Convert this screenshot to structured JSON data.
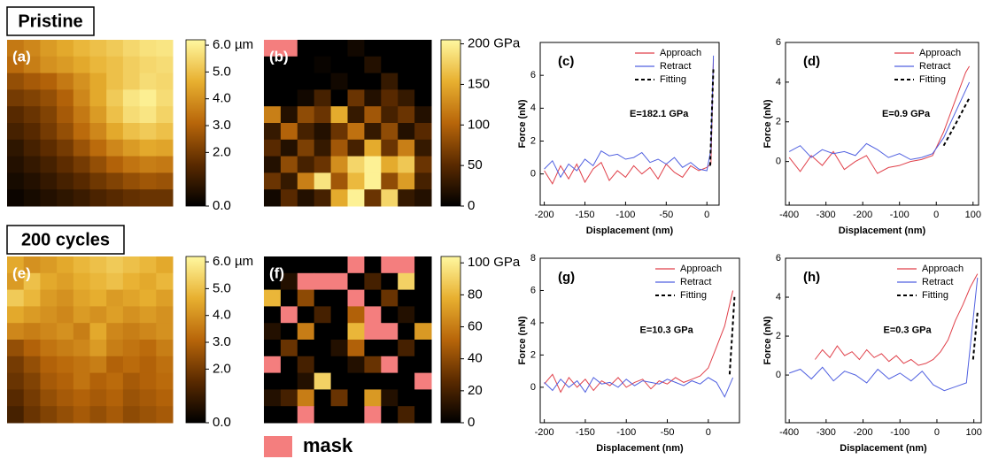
{
  "row_labels": [
    "Pristine",
    "200 cycles"
  ],
  "mask_label": "mask",
  "mask_color": "#f47e7e",
  "chart_data": [
    {
      "type": "heatmap",
      "label": "(a)",
      "colormap": [
        "#000000",
        "#5a2a00",
        "#b8660a",
        "#e8b030",
        "#fff8a0"
      ],
      "zlim": [
        0,
        6.2
      ],
      "zticks": [
        {
          "value": 6,
          "label": "6.0 µm"
        },
        {
          "value": 5,
          "label": "5.0"
        },
        {
          "value": 4,
          "label": "4.0"
        },
        {
          "value": 3,
          "label": "3.0"
        },
        {
          "value": 2,
          "label": "2.0"
        },
        {
          "value": 0,
          "label": "0.0"
        }
      ],
      "values": [
        [
          3.5,
          3.8,
          4.2,
          4.5,
          4.8,
          5.0,
          5.2,
          5.5,
          5.7,
          5.8
        ],
        [
          3.2,
          3.6,
          4.0,
          4.2,
          4.5,
          4.8,
          5.0,
          5.3,
          5.5,
          5.6
        ],
        [
          2.5,
          2.8,
          3.0,
          3.5,
          4.0,
          4.5,
          5.0,
          5.3,
          5.6,
          5.5
        ],
        [
          2.0,
          2.2,
          2.5,
          3.0,
          3.8,
          4.5,
          5.2,
          5.8,
          6.0,
          5.6
        ],
        [
          1.5,
          1.8,
          2.2,
          2.8,
          3.5,
          4.2,
          5.0,
          5.6,
          5.8,
          5.4
        ],
        [
          1.2,
          1.5,
          2.0,
          2.5,
          3.2,
          3.8,
          4.5,
          5.0,
          5.2,
          5.0
        ],
        [
          0.8,
          1.2,
          1.6,
          2.0,
          2.6,
          3.2,
          3.8,
          4.2,
          4.5,
          4.4
        ],
        [
          0.6,
          0.9,
          1.2,
          1.6,
          2.0,
          2.5,
          3.0,
          3.4,
          3.6,
          3.5
        ],
        [
          0.4,
          0.6,
          0.9,
          1.2,
          1.5,
          1.9,
          2.2,
          2.5,
          2.7,
          2.6
        ],
        [
          0.2,
          0.4,
          0.6,
          0.8,
          1.0,
          1.3,
          1.5,
          1.7,
          1.8,
          1.8
        ]
      ]
    },
    {
      "type": "heatmap",
      "label": "(b)",
      "colormap": [
        "#000000",
        "#5a2a00",
        "#b8660a",
        "#e8b030",
        "#fff8a0"
      ],
      "zlim": [
        0,
        205
      ],
      "zticks": [
        {
          "value": 200,
          "label": "200 GPa"
        },
        150,
        100,
        50,
        0
      ],
      "values": [
        [
          null,
          null,
          0,
          0,
          0,
          10,
          0,
          0,
          0,
          0
        ],
        [
          0,
          0,
          0,
          5,
          0,
          0,
          20,
          0,
          0,
          0
        ],
        [
          0,
          0,
          0,
          0,
          10,
          0,
          0,
          30,
          0,
          0
        ],
        [
          0,
          0,
          10,
          40,
          0,
          60,
          20,
          50,
          30,
          0
        ],
        [
          120,
          20,
          80,
          60,
          150,
          30,
          90,
          40,
          60,
          20
        ],
        [
          30,
          100,
          40,
          20,
          60,
          110,
          30,
          80,
          20,
          50
        ],
        [
          50,
          20,
          70,
          30,
          90,
          40,
          150,
          60,
          120,
          30
        ],
        [
          20,
          80,
          40,
          60,
          130,
          180,
          200,
          150,
          170,
          60
        ],
        [
          60,
          30,
          120,
          190,
          90,
          160,
          200,
          80,
          140,
          40
        ],
        [
          10,
          50,
          20,
          40,
          150,
          200,
          60,
          180,
          30,
          20
        ]
      ]
    },
    {
      "type": "line",
      "label": "(c)",
      "xlabel": "Displacement (nm)",
      "ylabel": "Force (nN)",
      "annotation": "E=182.1 GPa",
      "xlim": [
        -205,
        15
      ],
      "ylim": [
        -1.9,
        8
      ],
      "xticks": [
        -200,
        -150,
        -100,
        -50,
        0
      ],
      "yticks": [
        0,
        2,
        4,
        6
      ],
      "series": [
        {
          "name": "Approach",
          "color": "#e0404a",
          "x": [
            -200,
            -190,
            -180,
            -170,
            -160,
            -150,
            -140,
            -130,
            -120,
            -110,
            -100,
            -90,
            -80,
            -70,
            -60,
            -50,
            -40,
            -30,
            -20,
            -10,
            0,
            5,
            8
          ],
          "values": [
            0.2,
            -0.6,
            0.5,
            -0.3,
            0.6,
            -0.5,
            0.3,
            0.7,
            -0.4,
            0.2,
            -0.2,
            0.5,
            0.0,
            0.4,
            -0.3,
            0.6,
            0.1,
            -0.2,
            0.5,
            0.2,
            0.4,
            0.6,
            7.0
          ]
        },
        {
          "name": "Retract",
          "color": "#5060e0",
          "x": [
            -200,
            -190,
            -180,
            -170,
            -160,
            -150,
            -140,
            -130,
            -120,
            -110,
            -100,
            -90,
            -80,
            -70,
            -60,
            -50,
            -40,
            -30,
            -20,
            -10,
            0,
            5,
            8
          ],
          "values": [
            0.3,
            0.8,
            -0.2,
            0.6,
            0.2,
            0.9,
            0.5,
            1.4,
            1.1,
            1.2,
            0.9,
            1.0,
            1.3,
            0.7,
            0.9,
            0.6,
            1.0,
            0.4,
            0.7,
            0.3,
            0.2,
            1.5,
            7.2
          ]
        },
        {
          "name": "Fitting",
          "color": "#000000",
          "dashed": true,
          "x": [
            4,
            6,
            8
          ],
          "values": [
            0.5,
            3.5,
            6.5
          ]
        }
      ]
    },
    {
      "type": "line",
      "label": "(d)",
      "xlabel": "Displacement (nm)",
      "ylabel": "Force (nN)",
      "annotation": "E=0.9 GPa",
      "xlim": [
        -410,
        115
      ],
      "ylim": [
        -2.2,
        6
      ],
      "xticks": [
        -400,
        -300,
        -200,
        -100,
        0,
        100
      ],
      "yticks": [
        0,
        2,
        4,
        6
      ],
      "series": [
        {
          "name": "Approach",
          "color": "#e0404a",
          "x": [
            -400,
            -370,
            -340,
            -310,
            -280,
            -250,
            -220,
            -190,
            -160,
            -130,
            -100,
            -70,
            -40,
            -10,
            20,
            50,
            80,
            90
          ],
          "values": [
            0.2,
            -0.5,
            0.3,
            -0.2,
            0.5,
            -0.4,
            0.0,
            0.3,
            -0.6,
            -0.3,
            -0.2,
            0.0,
            0.1,
            0.3,
            1.5,
            3.0,
            4.5,
            4.8
          ]
        },
        {
          "name": "Retract",
          "color": "#5060e0",
          "x": [
            -400,
            -370,
            -340,
            -310,
            -280,
            -250,
            -220,
            -190,
            -160,
            -130,
            -100,
            -70,
            -40,
            -10,
            20,
            50,
            80,
            90
          ],
          "values": [
            0.5,
            0.8,
            0.2,
            0.6,
            0.4,
            0.5,
            0.3,
            0.9,
            0.6,
            0.2,
            0.4,
            0.1,
            0.2,
            0.4,
            1.2,
            2.4,
            3.6,
            4.0
          ]
        },
        {
          "name": "Fitting",
          "color": "#000000",
          "dashed": true,
          "x": [
            20,
            50,
            90
          ],
          "values": [
            0.8,
            1.8,
            3.2
          ]
        }
      ]
    },
    {
      "type": "heatmap",
      "label": "(e)",
      "colormap": [
        "#000000",
        "#5a2a00",
        "#b8660a",
        "#e8b030",
        "#fff8a0"
      ],
      "zlim": [
        0,
        6.2
      ],
      "zticks": [
        {
          "value": 6,
          "label": "6.0 µm"
        },
        {
          "value": 5,
          "label": "5.0"
        },
        {
          "value": 4,
          "label": "4.0"
        },
        {
          "value": 3,
          "label": "3.0"
        },
        {
          "value": 2,
          "label": "2.0"
        },
        {
          "value": 0,
          "label": "0.0"
        }
      ],
      "values": [
        [
          4.5,
          4.0,
          4.2,
          4.5,
          4.8,
          5.0,
          5.2,
          5.0,
          4.8,
          4.5
        ],
        [
          4.2,
          5.0,
          4.5,
          4.3,
          4.6,
          4.8,
          5.0,
          4.7,
          4.5,
          4.8
        ],
        [
          5.2,
          4.8,
          4.2,
          4.0,
          4.4,
          4.6,
          4.2,
          4.4,
          4.6,
          4.3
        ],
        [
          4.5,
          4.2,
          4.0,
          3.8,
          4.2,
          4.0,
          4.3,
          4.0,
          4.2,
          4.0
        ],
        [
          3.8,
          3.6,
          3.8,
          4.0,
          3.6,
          4.5,
          3.8,
          3.6,
          3.8,
          4.0
        ],
        [
          2.5,
          3.0,
          3.4,
          3.6,
          3.8,
          4.2,
          3.6,
          3.4,
          3.2,
          3.6
        ],
        [
          2.0,
          2.5,
          3.0,
          3.2,
          3.4,
          3.6,
          3.0,
          3.2,
          3.0,
          3.3
        ],
        [
          1.8,
          2.2,
          2.8,
          3.0,
          3.4,
          3.0,
          3.2,
          2.8,
          3.0,
          3.2
        ],
        [
          1.5,
          2.0,
          2.5,
          2.8,
          3.0,
          2.8,
          3.0,
          2.6,
          2.8,
          3.0
        ],
        [
          1.2,
          1.8,
          2.2,
          2.5,
          2.8,
          2.5,
          2.8,
          2.4,
          2.6,
          2.8
        ]
      ]
    },
    {
      "type": "heatmap",
      "label": "(f)",
      "colormap": [
        "#000000",
        "#5a2a00",
        "#b8660a",
        "#e8b030",
        "#fff8a0"
      ],
      "zlim": [
        0,
        104
      ],
      "zticks": [
        {
          "value": 100,
          "label": "100 GPa"
        },
        80,
        60,
        40,
        20,
        0
      ],
      "values": [
        [
          0,
          0,
          0,
          0,
          0,
          null,
          0,
          null,
          null,
          0
        ],
        [
          0,
          10,
          null,
          null,
          null,
          0,
          20,
          0,
          90,
          0
        ],
        [
          80,
          0,
          40,
          0,
          0,
          null,
          0,
          30,
          0,
          0
        ],
        [
          0,
          null,
          0,
          20,
          0,
          50,
          null,
          0,
          10,
          0
        ],
        [
          10,
          0,
          60,
          0,
          0,
          80,
          null,
          null,
          0,
          70
        ],
        [
          0,
          30,
          0,
          0,
          10,
          50,
          0,
          0,
          20,
          0
        ],
        [
          null,
          0,
          20,
          0,
          0,
          10,
          30,
          null,
          0,
          0
        ],
        [
          0,
          0,
          10,
          90,
          0,
          0,
          0,
          0,
          0,
          null
        ],
        [
          10,
          20,
          60,
          0,
          30,
          0,
          70,
          10,
          0,
          0
        ],
        [
          0,
          0,
          null,
          0,
          0,
          0,
          null,
          0,
          20,
          0
        ]
      ]
    },
    {
      "type": "line",
      "label": "(g)",
      "xlabel": "Displacement (nm)",
      "ylabel": "Force (nN)",
      "annotation": "E=10.3 GPa",
      "xlim": [
        -205,
        38
      ],
      "ylim": [
        -2.2,
        8
      ],
      "xticks": [
        -200,
        -150,
        -100,
        -50,
        0
      ],
      "yticks": [
        0,
        2,
        4,
        6,
        8
      ],
      "series": [
        {
          "name": "Approach",
          "color": "#e0404a",
          "x": [
            -200,
            -190,
            -180,
            -170,
            -160,
            -150,
            -140,
            -130,
            -120,
            -110,
            -100,
            -90,
            -80,
            -70,
            -60,
            -50,
            -40,
            -30,
            -20,
            -10,
            0,
            10,
            20,
            30
          ],
          "values": [
            0.2,
            0.8,
            -0.3,
            0.6,
            0.0,
            0.5,
            -0.2,
            0.4,
            0.1,
            0.6,
            0.0,
            0.3,
            0.5,
            -0.1,
            0.4,
            0.2,
            0.6,
            0.3,
            0.5,
            0.7,
            1.2,
            2.5,
            3.8,
            6.0
          ]
        },
        {
          "name": "Retract",
          "color": "#5060e0",
          "x": [
            -200,
            -190,
            -180,
            -170,
            -160,
            -150,
            -140,
            -130,
            -120,
            -110,
            -100,
            -90,
            -80,
            -70,
            -60,
            -50,
            -40,
            -30,
            -20,
            -10,
            0,
            10,
            20,
            30
          ],
          "values": [
            0.3,
            -0.2,
            0.5,
            0.0,
            0.4,
            -0.3,
            0.6,
            0.2,
            0.3,
            0.0,
            0.5,
            0.1,
            0.4,
            0.3,
            0.2,
            0.5,
            0.3,
            0.1,
            0.4,
            0.2,
            0.6,
            0.3,
            -0.6,
            0.6
          ]
        },
        {
          "name": "Fitting",
          "color": "#000000",
          "dashed": true,
          "x": [
            26,
            29,
            32
          ],
          "values": [
            0.8,
            3.2,
            5.6
          ]
        }
      ]
    },
    {
      "type": "line",
      "label": "(h)",
      "xlabel": "Displacement (nm)",
      "ylabel": "Force (nN)",
      "annotation": "E=0.3 GPa",
      "xlim": [
        -410,
        120
      ],
      "ylim": [
        -2.45,
        6
      ],
      "xticks": [
        -400,
        -300,
        -200,
        -100,
        0,
        100
      ],
      "yticks": [
        0,
        2,
        4,
        6
      ],
      "series": [
        {
          "name": "Approach",
          "color": "#e0404a",
          "x": [
            -330,
            -310,
            -290,
            -270,
            -250,
            -230,
            -210,
            -190,
            -170,
            -150,
            -130,
            -110,
            -90,
            -70,
            -50,
            -30,
            -10,
            10,
            30,
            50,
            70,
            90,
            110
          ],
          "values": [
            0.8,
            1.3,
            0.9,
            1.5,
            1.0,
            1.2,
            0.8,
            1.3,
            0.9,
            1.1,
            0.7,
            1.0,
            0.6,
            0.8,
            0.5,
            0.6,
            0.8,
            1.2,
            1.8,
            2.8,
            3.6,
            4.5,
            5.2
          ]
        },
        {
          "name": "Retract",
          "color": "#5060e0",
          "x": [
            -400,
            -370,
            -340,
            -310,
            -280,
            -250,
            -220,
            -190,
            -160,
            -130,
            -100,
            -70,
            -40,
            -10,
            20,
            50,
            80,
            110
          ],
          "values": [
            0.1,
            0.3,
            -0.2,
            0.4,
            -0.3,
            0.2,
            0.0,
            -0.4,
            0.3,
            -0.2,
            0.1,
            -0.3,
            0.2,
            -0.5,
            -0.8,
            -0.6,
            -0.4,
            5.0
          ]
        },
        {
          "name": "Fitting",
          "color": "#000000",
          "dashed": true,
          "x": [
            98,
            104,
            110
          ],
          "values": [
            0.8,
            2.0,
            3.2
          ]
        }
      ]
    }
  ]
}
